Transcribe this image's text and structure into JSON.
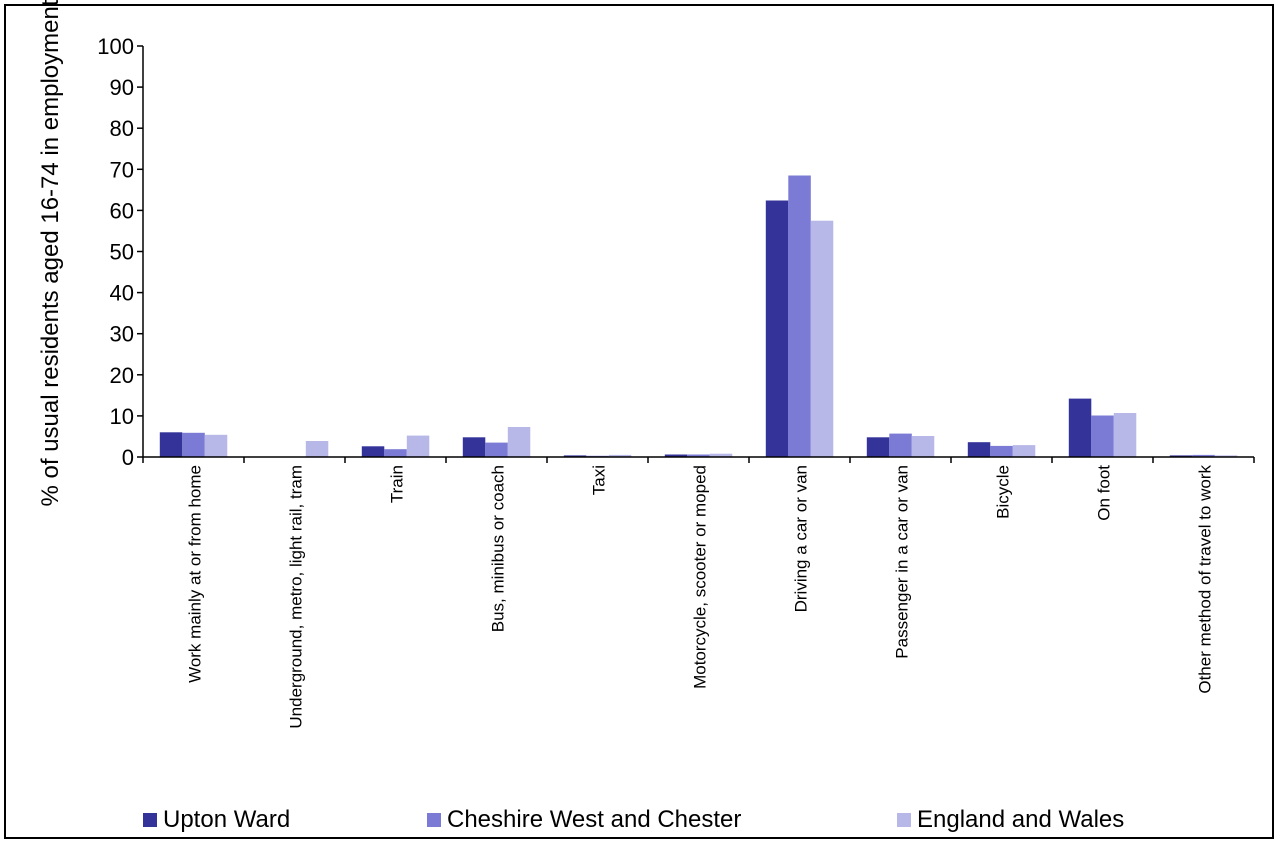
{
  "chart_data": {
    "type": "bar",
    "title": "",
    "xlabel": "",
    "ylabel": "% of usual residents aged 16-74 in employment",
    "ylim": [
      0,
      100
    ],
    "yticks": [
      0,
      10,
      20,
      30,
      40,
      50,
      60,
      70,
      80,
      90,
      100
    ],
    "grid": false,
    "legend_position": "bottom",
    "categories": [
      "Work mainly at or from home",
      "Underground, metro, light rail, tram",
      "Train",
      "Bus, minibus or coach",
      "Taxi",
      "Motorcycle, scooter or moped",
      "Driving a car or van",
      "Passenger in a car or van",
      "Bicycle",
      "On foot",
      "Other method of travel to work"
    ],
    "series": [
      {
        "name": "Upton Ward",
        "color": "#333399",
        "values": [
          6.0,
          0.1,
          2.6,
          4.8,
          0.4,
          0.6,
          62.4,
          4.8,
          3.6,
          14.2,
          0.4
        ]
      },
      {
        "name": "Cheshire West and Chester",
        "color": "#7b7bd6",
        "values": [
          5.9,
          0.1,
          1.9,
          3.5,
          0.3,
          0.6,
          68.5,
          5.7,
          2.7,
          10.1,
          0.5
        ]
      },
      {
        "name": "England and Wales",
        "color": "#b8b8e8",
        "values": [
          5.4,
          3.9,
          5.2,
          7.3,
          0.5,
          0.8,
          57.5,
          5.1,
          2.9,
          10.7,
          0.4
        ]
      }
    ]
  }
}
